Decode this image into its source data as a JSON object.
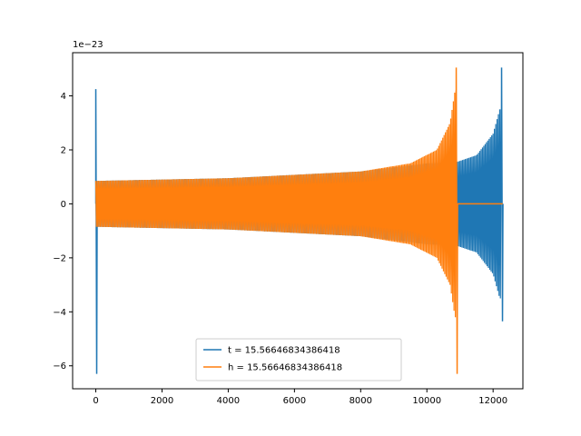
{
  "chart_data": {
    "type": "line",
    "title": "",
    "xlabel": "",
    "ylabel": "",
    "y_offset_label": "1e−23",
    "xlim": [
      -700,
      12900
    ],
    "ylim": [
      -6.85,
      5.6
    ],
    "xticks": [
      0,
      2000,
      4000,
      6000,
      8000,
      10000,
      12000
    ],
    "xtick_labels": [
      "0",
      "2000",
      "4000",
      "6000",
      "8000",
      "10000",
      "12000"
    ],
    "yticks": [
      -6,
      -4,
      -2,
      0,
      2,
      4
    ],
    "ytick_labels": [
      "−6",
      "−4",
      "−2",
      "0",
      "2",
      "4"
    ],
    "grid": false,
    "legend_position": "lower-center",
    "series": [
      {
        "name": "t = 15.56646834386418",
        "color": "#1f77b4",
        "initial_spike": {
          "x": 0,
          "ymax": 4.25,
          "ymin": -6.3
        },
        "envelope": [
          {
            "x": 0,
            "amp": 0.85
          },
          {
            "x": 4000,
            "amp": 0.95
          },
          {
            "x": 8000,
            "amp": 1.2
          },
          {
            "x": 10000,
            "amp": 1.5
          },
          {
            "x": 10900,
            "amp": 1.55
          },
          {
            "x": 11500,
            "amp": 1.8
          },
          {
            "x": 12000,
            "amp": 2.6
          },
          {
            "x": 12200,
            "amp": 3.5
          }
        ],
        "end_spike": {
          "x": 12270,
          "ymax": 5.05,
          "ymin": -4.35
        },
        "end_x": 12290
      },
      {
        "name": "h = 15.56646834386418",
        "color": "#ff7f0e",
        "envelope": [
          {
            "x": 0,
            "amp": 0.85
          },
          {
            "x": 4000,
            "amp": 0.95
          },
          {
            "x": 8000,
            "amp": 1.2
          },
          {
            "x": 9500,
            "amp": 1.5
          },
          {
            "x": 10300,
            "amp": 2.0
          },
          {
            "x": 10700,
            "amp": 3.0
          },
          {
            "x": 10850,
            "amp": 4.2
          }
        ],
        "end_spike": {
          "x": 10900,
          "ymax": 5.05,
          "ymin": -6.3
        },
        "flat_after": {
          "x_start": 10920,
          "x_end": 12290,
          "y": 0
        }
      }
    ]
  }
}
